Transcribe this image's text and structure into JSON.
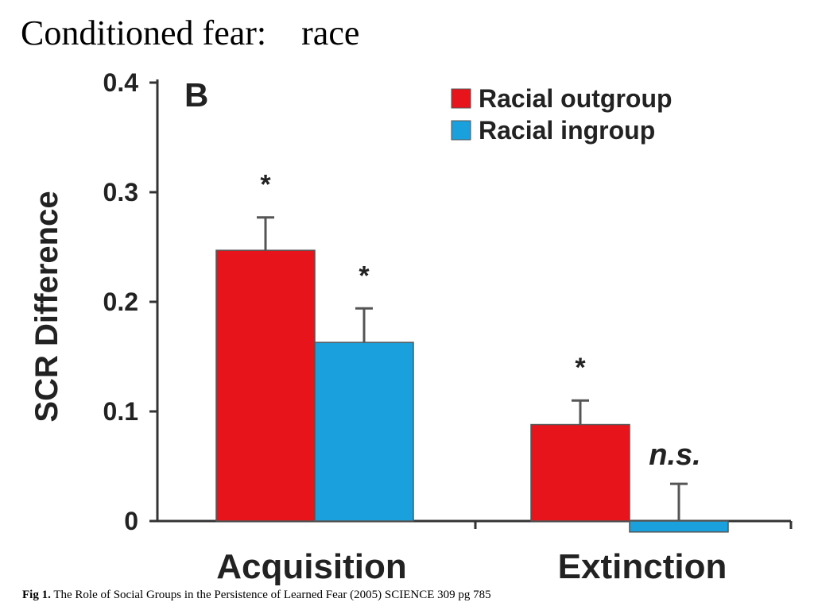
{
  "slide": {
    "title": "Conditioned fear:    race",
    "caption_prefix": "Fig 1.",
    "caption_text": " The Role of Social Groups in the Persistence of Learned Fear (2005) SCIENCE 309 pg 785"
  },
  "chart_data": {
    "type": "bar",
    "panel_label": "B",
    "title": "",
    "xlabel": "",
    "ylabel": "SCR Difference",
    "ylim": [
      0,
      0.4
    ],
    "yticks": [
      0,
      0.1,
      0.2,
      0.3,
      0.4
    ],
    "ytick_labels": [
      "0",
      "0.1",
      "0.2",
      "0.3",
      "0.4"
    ],
    "categories": [
      "Acquisition",
      "Extinction"
    ],
    "legend_position": "top-right",
    "grid": false,
    "series": [
      {
        "name": "Racial outgroup",
        "color": "#e8141c",
        "values": [
          0.247,
          0.088
        ],
        "errors": [
          0.03,
          0.022
        ],
        "annotations": [
          "*",
          "*"
        ]
      },
      {
        "name": "Racial ingroup",
        "color": "#1aa0dc",
        "values": [
          0.163,
          -0.01
        ],
        "errors": [
          0.031,
          0.034
        ],
        "annotations": [
          "*",
          "n.s."
        ]
      }
    ]
  }
}
